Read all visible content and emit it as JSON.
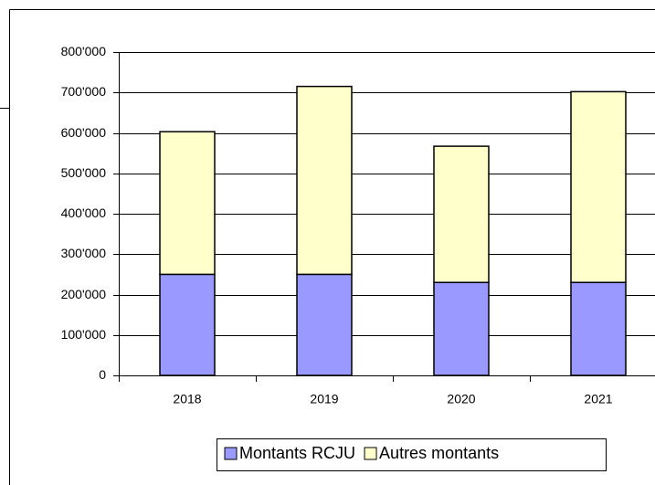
{
  "chart_data": {
    "type": "bar",
    "stacked": true,
    "categories": [
      "2018",
      "2019",
      "2020",
      "2021"
    ],
    "series": [
      {
        "name": "Montants RCJU",
        "color": "#9999ff",
        "values": [
          250000,
          250000,
          230000,
          230000
        ]
      },
      {
        "name": "Autres montants",
        "color": "#ffffcc",
        "values": [
          353000,
          465000,
          337000,
          472000
        ]
      }
    ],
    "ylim": [
      0,
      800000
    ],
    "yticks": [
      0,
      {
        "value": 100000,
        "label": "100'000"
      },
      {
        "value": 200000,
        "label": "200'000"
      },
      {
        "value": 300000,
        "label": "300'000"
      },
      {
        "value": 400000,
        "label": "400'000"
      },
      {
        "value": 500000,
        "label": "500'000"
      },
      {
        "value": 600000,
        "label": "600'000"
      },
      {
        "value": 700000,
        "label": "700'000"
      },
      {
        "value": 800000,
        "label": "800'000"
      }
    ],
    "grid": true,
    "legend": "bottom"
  }
}
